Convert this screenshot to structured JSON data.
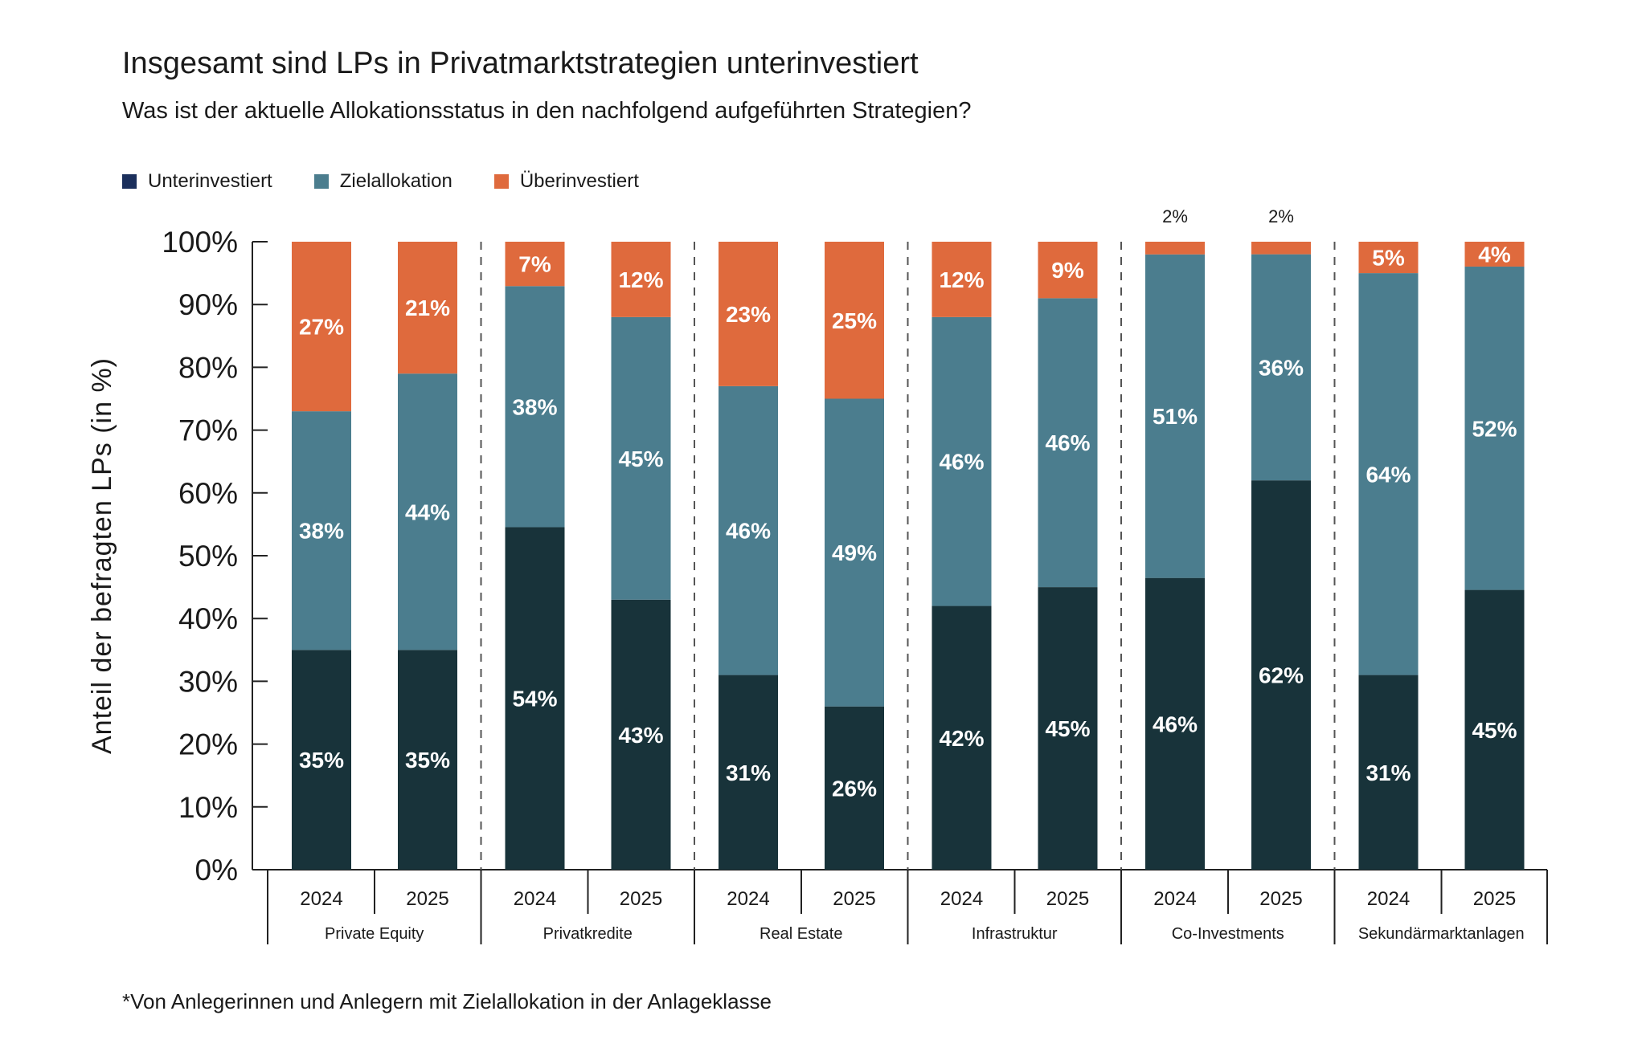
{
  "title": "Insgesamt sind LPs in Privatmarktstrategien unterinvestiert",
  "subtitle": "Was ist der aktuelle Allokationsstatus in den nachfolgend aufgeführten Strategien?",
  "footnote": "*Von Anlegerinnen und Anlegern mit Zielallokation in der Anlageklasse",
  "colors": {
    "Unterinvestiert_legend": "#1b2f5c",
    "Unterinvestiert": "#18333a",
    "Zielallokation": "#4b7d8e",
    "Überinvestiert": "#df6a3d"
  },
  "chart_data": {
    "type": "bar",
    "stacked": true,
    "ylabel": "Anteil der befragten LPs (in %)",
    "ylim": [
      0,
      100
    ],
    "yticks": [
      "0%",
      "10%",
      "20%",
      "30%",
      "40%",
      "50%",
      "60%",
      "70%",
      "80%",
      "90%",
      "100%"
    ],
    "legend_position": "top-left",
    "groups": [
      "Private Equity",
      "Privatkredite",
      "Real Estate",
      "Infrastruktur",
      "Co-Investments",
      "Sekundärmarktanlagen"
    ],
    "years": [
      "2024",
      "2025"
    ],
    "series": [
      {
        "name": "Unterinvestiert",
        "values": [
          35,
          35,
          54,
          43,
          31,
          26,
          42,
          45,
          46,
          62,
          31,
          45
        ]
      },
      {
        "name": "Zielallokation",
        "values": [
          38,
          44,
          38,
          45,
          46,
          49,
          46,
          46,
          51,
          36,
          64,
          52
        ]
      },
      {
        "name": "Überinvestiert",
        "values": [
          27,
          21,
          7,
          12,
          23,
          25,
          12,
          9,
          2,
          2,
          5,
          4
        ]
      }
    ]
  }
}
